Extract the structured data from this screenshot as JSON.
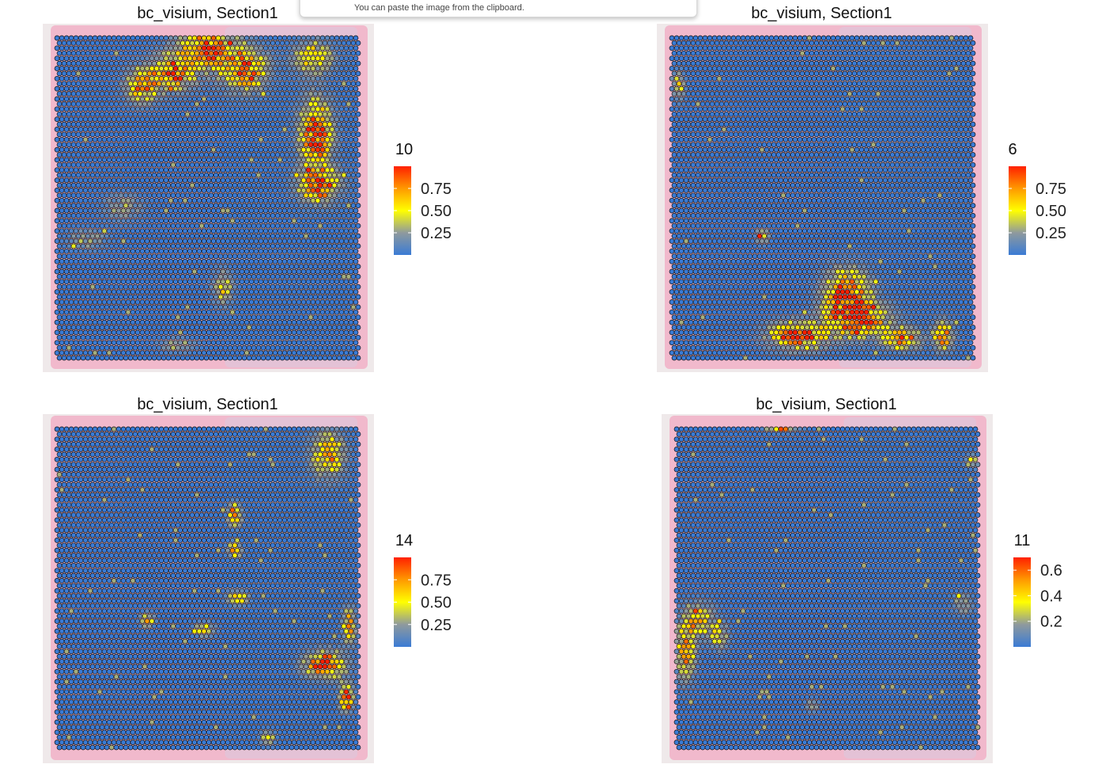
{
  "popup": {
    "text": "You can paste the image from the clipboard."
  },
  "chart_data": [
    {
      "type": "heatmap",
      "title": "bc_visium, Section1",
      "legend": {
        "title": "10",
        "ticks": [
          "0.75",
          "0.50",
          "0.25"
        ],
        "tick_values": [
          0.75,
          0.5,
          0.25
        ],
        "range": [
          0,
          1
        ],
        "placement": "right"
      },
      "colorscale": [
        "#3a7bd5",
        "#8f9a9d",
        "#ffff00",
        "#ff9900",
        "#ff2000"
      ],
      "hotspots": [
        {
          "u": 0.5,
          "v": 0.03,
          "sx": 0.09,
          "sy": 0.06,
          "a": 0.95
        },
        {
          "u": 0.38,
          "v": 0.11,
          "sx": 0.07,
          "sy": 0.05,
          "a": 0.9
        },
        {
          "u": 0.62,
          "v": 0.1,
          "sx": 0.07,
          "sy": 0.06,
          "a": 0.9
        },
        {
          "u": 0.85,
          "v": 0.06,
          "sx": 0.06,
          "sy": 0.05,
          "a": 0.6
        },
        {
          "u": 0.28,
          "v": 0.15,
          "sx": 0.05,
          "sy": 0.05,
          "a": 0.7
        },
        {
          "u": 0.86,
          "v": 0.3,
          "sx": 0.05,
          "sy": 0.1,
          "a": 1.0
        },
        {
          "u": 0.87,
          "v": 0.46,
          "sx": 0.06,
          "sy": 0.05,
          "a": 1.0
        },
        {
          "u": 0.22,
          "v": 0.53,
          "sx": 0.06,
          "sy": 0.04,
          "a": 0.3
        },
        {
          "u": 0.1,
          "v": 0.63,
          "sx": 0.06,
          "sy": 0.03,
          "a": 0.3
        },
        {
          "u": 0.55,
          "v": 0.78,
          "sx": 0.03,
          "sy": 0.05,
          "a": 0.5
        },
        {
          "u": 0.4,
          "v": 0.96,
          "sx": 0.05,
          "sy": 0.02,
          "a": 0.4
        }
      ],
      "max_expression": 1.0
    },
    {
      "type": "heatmap",
      "title": "bc_visium, Section1",
      "legend": {
        "title": "6",
        "ticks": [
          "0.75",
          "0.50",
          "0.25"
        ],
        "tick_values": [
          0.75,
          0.5,
          0.25
        ],
        "range": [
          0,
          1
        ],
        "placement": "right"
      },
      "colorscale": [
        "#3a7bd5",
        "#8f9a9d",
        "#ffff00",
        "#ff9900",
        "#ff2000"
      ],
      "hotspots": [
        {
          "u": 0.58,
          "v": 0.8,
          "sx": 0.07,
          "sy": 0.07,
          "a": 1.0
        },
        {
          "u": 0.62,
          "v": 0.88,
          "sx": 0.09,
          "sy": 0.05,
          "a": 1.0
        },
        {
          "u": 0.42,
          "v": 0.93,
          "sx": 0.09,
          "sy": 0.04,
          "a": 1.0
        },
        {
          "u": 0.76,
          "v": 0.94,
          "sx": 0.06,
          "sy": 0.03,
          "a": 0.9
        },
        {
          "u": 0.9,
          "v": 0.93,
          "sx": 0.03,
          "sy": 0.04,
          "a": 0.9
        },
        {
          "u": 0.3,
          "v": 0.62,
          "sx": 0.02,
          "sy": 0.02,
          "a": 0.6
        },
        {
          "u": 0.02,
          "v": 0.15,
          "sx": 0.02,
          "sy": 0.04,
          "a": 0.5
        }
      ],
      "max_expression": 1.0
    },
    {
      "type": "heatmap",
      "title": "bc_visium, Section1",
      "legend": {
        "title": "14",
        "ticks": [
          "0.75",
          "0.50",
          "0.25"
        ],
        "tick_values": [
          0.75,
          0.5,
          0.25
        ],
        "range": [
          0,
          1
        ],
        "placement": "right"
      },
      "colorscale": [
        "#3a7bd5",
        "#8f9a9d",
        "#ffff00",
        "#ff9900",
        "#ff2000"
      ],
      "hotspots": [
        {
          "u": 0.9,
          "v": 0.08,
          "sx": 0.05,
          "sy": 0.07,
          "a": 0.7
        },
        {
          "u": 0.59,
          "v": 0.27,
          "sx": 0.02,
          "sy": 0.03,
          "a": 1.0
        },
        {
          "u": 0.59,
          "v": 0.38,
          "sx": 0.02,
          "sy": 0.02,
          "a": 0.8
        },
        {
          "u": 0.6,
          "v": 0.53,
          "sx": 0.03,
          "sy": 0.02,
          "a": 0.7
        },
        {
          "u": 0.89,
          "v": 0.74,
          "sx": 0.06,
          "sy": 0.04,
          "a": 1.0
        },
        {
          "u": 0.97,
          "v": 0.62,
          "sx": 0.02,
          "sy": 0.05,
          "a": 0.8
        },
        {
          "u": 0.96,
          "v": 0.84,
          "sx": 0.02,
          "sy": 0.04,
          "a": 1.0
        },
        {
          "u": 0.3,
          "v": 0.6,
          "sx": 0.02,
          "sy": 0.02,
          "a": 0.6
        },
        {
          "u": 0.49,
          "v": 0.63,
          "sx": 0.03,
          "sy": 0.02,
          "a": 0.6
        },
        {
          "u": 0.7,
          "v": 0.97,
          "sx": 0.02,
          "sy": 0.02,
          "a": 0.6
        }
      ],
      "max_expression": 1.0
    },
    {
      "type": "heatmap",
      "title": "bc_visium, Section1",
      "legend": {
        "title": "11",
        "ticks": [
          "0.6",
          "0.4",
          "0.2"
        ],
        "tick_values": [
          0.6,
          0.4,
          0.2
        ],
        "range": [
          0,
          0.7
        ],
        "placement": "right"
      },
      "colorscale": [
        "#3a7bd5",
        "#8f9a9d",
        "#ffff00",
        "#ff9900",
        "#ff2000"
      ],
      "hotspots": [
        {
          "u": 0.07,
          "v": 0.6,
          "sx": 0.05,
          "sy": 0.05,
          "a": 0.6
        },
        {
          "u": 0.03,
          "v": 0.7,
          "sx": 0.03,
          "sy": 0.08,
          "a": 0.7
        },
        {
          "u": 0.14,
          "v": 0.65,
          "sx": 0.03,
          "sy": 0.04,
          "a": 0.45
        },
        {
          "u": 0.35,
          "v": 0.0,
          "sx": 0.05,
          "sy": 0.01,
          "a": 0.65
        },
        {
          "u": 0.98,
          "v": 0.1,
          "sx": 0.02,
          "sy": 0.02,
          "a": 0.45
        },
        {
          "u": 0.95,
          "v": 0.55,
          "sx": 0.03,
          "sy": 0.03,
          "a": 0.35
        },
        {
          "u": 0.45,
          "v": 0.87,
          "sx": 0.02,
          "sy": 0.02,
          "a": 0.3
        }
      ],
      "max_expression": 0.7
    }
  ]
}
